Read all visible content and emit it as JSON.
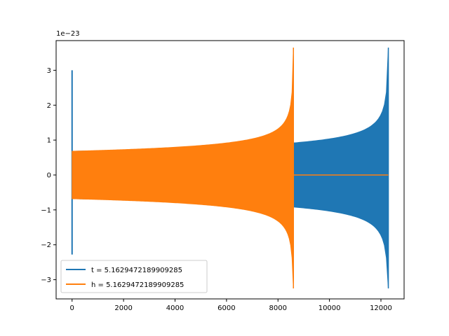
{
  "chart_data": {
    "type": "line",
    "title": "",
    "xlabel": "",
    "ylabel": "",
    "y_offset_label": "1e−23",
    "xlim": [
      -620,
      12900
    ],
    "ylim": [
      -3.55,
      3.85
    ],
    "x_ticks": [
      0,
      2000,
      4000,
      6000,
      8000,
      10000,
      12000
    ],
    "y_ticks": [
      -3,
      -2,
      -1,
      0,
      1,
      2,
      3
    ],
    "x_tick_labels": [
      "0",
      "2000",
      "4000",
      "6000",
      "8000",
      "10000",
      "12000"
    ],
    "y_tick_labels": [
      "−3",
      "−2",
      "−1",
      "0",
      "1",
      "2",
      "3"
    ],
    "grid": false,
    "legend_position": "lower-left",
    "series": [
      {
        "name": "t = 5.1629472189909285",
        "color": "#1f77b4",
        "spike": {
          "x": 0,
          "max": 3.0,
          "min": -2.28
        },
        "envelope": {
          "x_start": 0,
          "x_end": 12288,
          "amp_start": 0.68,
          "amp_peak_pos": 3.65,
          "amp_peak_neg": -3.25
        }
      },
      {
        "name": "h = 5.1629472189909285",
        "color": "#ff7f0e",
        "envelope": {
          "x_start": 0,
          "x_end": 8600,
          "amp_start": 0.68,
          "amp_peak_pos": 3.65,
          "amp_peak_neg": -3.25
        },
        "flat": {
          "x_start": 8600,
          "x_end": 12288,
          "value": 0
        }
      }
    ]
  }
}
